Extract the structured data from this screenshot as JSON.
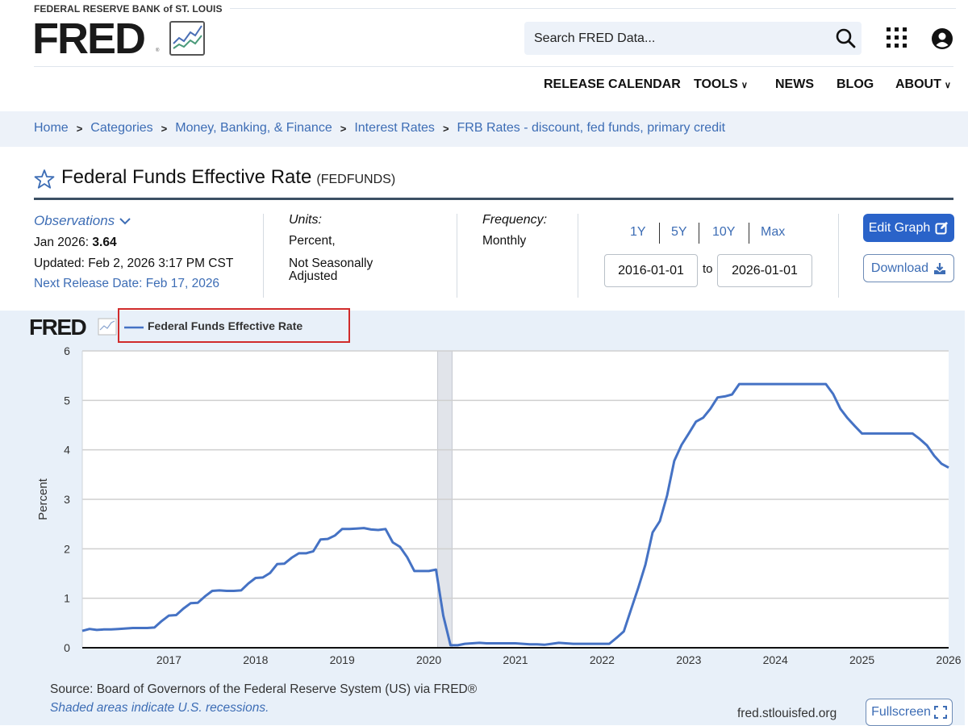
{
  "header": {
    "org_name": "FEDERAL RESERVE BANK of ST. LOUIS",
    "logo_text": "FRED",
    "logo_reg": "®",
    "search_placeholder": "Search FRED Data...",
    "nav": [
      {
        "label": "RELEASE CALENDAR",
        "has_dropdown": false
      },
      {
        "label": "TOOLS",
        "has_dropdown": true
      },
      {
        "label": "NEWS",
        "has_dropdown": false
      },
      {
        "label": "BLOG",
        "has_dropdown": false
      },
      {
        "label": "ABOUT",
        "has_dropdown": true
      }
    ],
    "icons": [
      "search-icon",
      "apps-grid-icon",
      "user-account-icon"
    ]
  },
  "breadcrumb": {
    "items": [
      "Home",
      "Categories",
      "Money, Banking, & Finance",
      "Interest Rates",
      "FRB Rates - discount, fed funds, primary credit"
    ],
    "separator": ">"
  },
  "series": {
    "title": "Federal Funds Effective Rate",
    "id": "(FEDFUNDS)"
  },
  "observations": {
    "label": "Observations",
    "latest_period": "Jan 2026:",
    "latest_value": "3.64",
    "updated": "Updated: Feb 2, 2026 3:17 PM CST",
    "next_release": "Next Release Date: Feb 17, 2026"
  },
  "units": {
    "label": "Units:",
    "line1": "Percent,",
    "line2": "Not Seasonally",
    "line3": "Adjusted"
  },
  "frequency": {
    "label": "Frequency:",
    "value": "Monthly"
  },
  "range": {
    "buttons": [
      "1Y",
      "5Y",
      "10Y",
      "Max"
    ],
    "start": "2016-01-01",
    "to_label": "to",
    "end": "2026-01-01"
  },
  "actions": {
    "edit_graph": "Edit Graph",
    "download": "Download",
    "fullscreen": "Fullscreen"
  },
  "chart_footer": {
    "source": "Source: Board of Governors of the Federal Reserve System (US) via FRED®",
    "shaded_note": "Shaded areas indicate U.S. recessions.",
    "site": "fred.stlouisfed.org"
  },
  "colors": {
    "line": "#4572c4",
    "accent": "#2a63c9",
    "link": "#3d6db5",
    "chart_bg": "#e8f0f9",
    "recession": "#e1e4ea",
    "highlight_box": "#d02b2b"
  },
  "chart_data": {
    "type": "line",
    "title": "Federal Funds Effective Rate",
    "legend": [
      "Federal Funds Effective Rate"
    ],
    "legend_position": "top-left",
    "xlabel": "",
    "ylabel": "Percent",
    "ylim": [
      0,
      6
    ],
    "yticks": [
      0,
      1,
      2,
      3,
      4,
      5,
      6
    ],
    "xticks": [
      "2017",
      "2018",
      "2019",
      "2020",
      "2021",
      "2022",
      "2023",
      "2024",
      "2025",
      "2026"
    ],
    "grid": true,
    "recession_shading": [
      {
        "start": "2020-02",
        "end": "2020-04"
      }
    ],
    "x_start": "2016-01",
    "frequency": "monthly",
    "series": [
      {
        "name": "Federal Funds Effective Rate",
        "values": [
          0.34,
          0.38,
          0.36,
          0.37,
          0.37,
          0.38,
          0.39,
          0.4,
          0.4,
          0.4,
          0.41,
          0.54,
          0.65,
          0.66,
          0.79,
          0.9,
          0.91,
          1.04,
          1.15,
          1.16,
          1.15,
          1.15,
          1.16,
          1.3,
          1.41,
          1.42,
          1.51,
          1.69,
          1.7,
          1.82,
          1.91,
          1.91,
          1.95,
          2.19,
          2.2,
          2.27,
          2.4,
          2.4,
          2.41,
          2.42,
          2.39,
          2.38,
          2.4,
          2.13,
          2.04,
          1.83,
          1.55,
          1.55,
          1.55,
          1.58,
          0.65,
          0.05,
          0.05,
          0.08,
          0.09,
          0.1,
          0.09,
          0.09,
          0.09,
          0.09,
          0.09,
          0.08,
          0.07,
          0.07,
          0.06,
          0.08,
          0.1,
          0.09,
          0.08,
          0.08,
          0.08,
          0.08,
          0.08,
          0.08,
          0.2,
          0.33,
          0.77,
          1.21,
          1.68,
          2.33,
          2.56,
          3.08,
          3.78,
          4.1,
          4.33,
          4.57,
          4.65,
          4.83,
          5.06,
          5.08,
          5.12,
          5.33,
          5.33,
          5.33,
          5.33,
          5.33,
          5.33,
          5.33,
          5.33,
          5.33,
          5.33,
          5.33,
          5.33,
          5.33,
          5.13,
          4.83,
          4.64,
          4.48,
          4.33,
          4.33,
          4.33,
          4.33,
          4.33,
          4.33,
          4.33,
          4.33,
          4.22,
          4.09,
          3.88,
          3.72,
          3.64
        ]
      }
    ]
  }
}
